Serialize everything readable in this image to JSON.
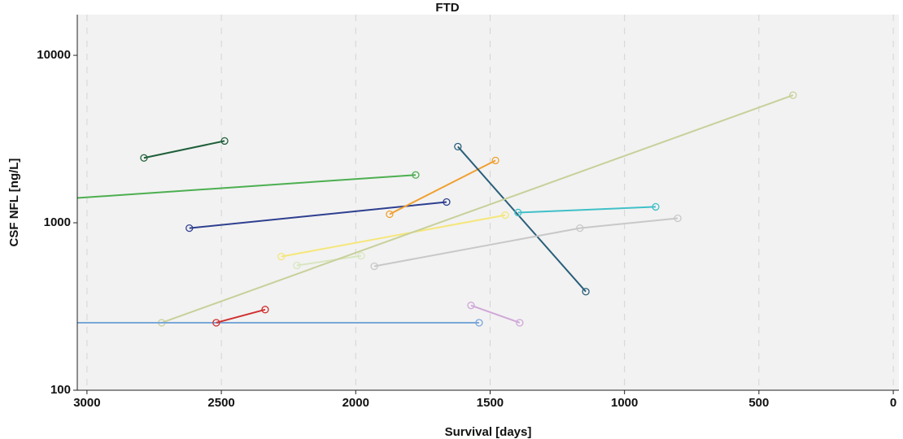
{
  "chart_data": {
    "type": "line",
    "title": "FTD",
    "x_label": "Survival [days]",
    "y_label": "CSF NFL [ng/L]",
    "xlim": [
      3036,
      -21
    ],
    "xticks": [
      3000,
      2500,
      2000,
      1500,
      1000,
      500,
      0
    ],
    "ylim": [
      100,
      17500
    ],
    "yticks": [
      100,
      1000,
      10000
    ],
    "y_scale": "log",
    "grid": true,
    "series": [
      {
        "color": "#1f5f3a",
        "x": [
          2788,
          2488
        ],
        "values": [
          2440,
          3080
        ]
      },
      {
        "color": "#4caf50",
        "x": [
          3100,
          1777
        ],
        "values": [
          1384,
          1930
        ]
      },
      {
        "color": "#2e3f8f",
        "x": [
          2619,
          1662
        ],
        "values": [
          929,
          1330
        ]
      },
      {
        "color": "#f0a030",
        "x": [
          1874,
          1480
        ],
        "values": [
          1125,
          2355
        ]
      },
      {
        "color": "#2a5f7a",
        "x": [
          1620,
          1144
        ],
        "values": [
          2850,
          388
        ]
      },
      {
        "color": "#40c0c8",
        "x": [
          1396,
          884
        ],
        "values": [
          1151,
          1245
        ]
      },
      {
        "color": "#f5e67a",
        "x": [
          2277,
          1444
        ],
        "values": [
          628,
          1111
        ]
      },
      {
        "color": "#d8e6c0",
        "x": [
          2219,
          1980
        ],
        "values": [
          556,
          635
        ]
      },
      {
        "color": "#c8c8c8",
        "x": [
          1931,
          1166,
          802
        ],
        "values": [
          550,
          929,
          1064
        ]
      },
      {
        "color": "#c8d09a",
        "x": [
          2722,
          373
        ],
        "values": [
          253,
          5780
        ]
      },
      {
        "color": "#7aa6d8",
        "x": [
          3100,
          1541
        ],
        "values": [
          253,
          253
        ]
      },
      {
        "color": "#d03030",
        "x": [
          2519,
          2337
        ],
        "values": [
          253,
          303
        ]
      },
      {
        "color": "#d0a8d8",
        "x": [
          1571,
          1390
        ],
        "values": [
          321,
          253
        ]
      }
    ]
  }
}
